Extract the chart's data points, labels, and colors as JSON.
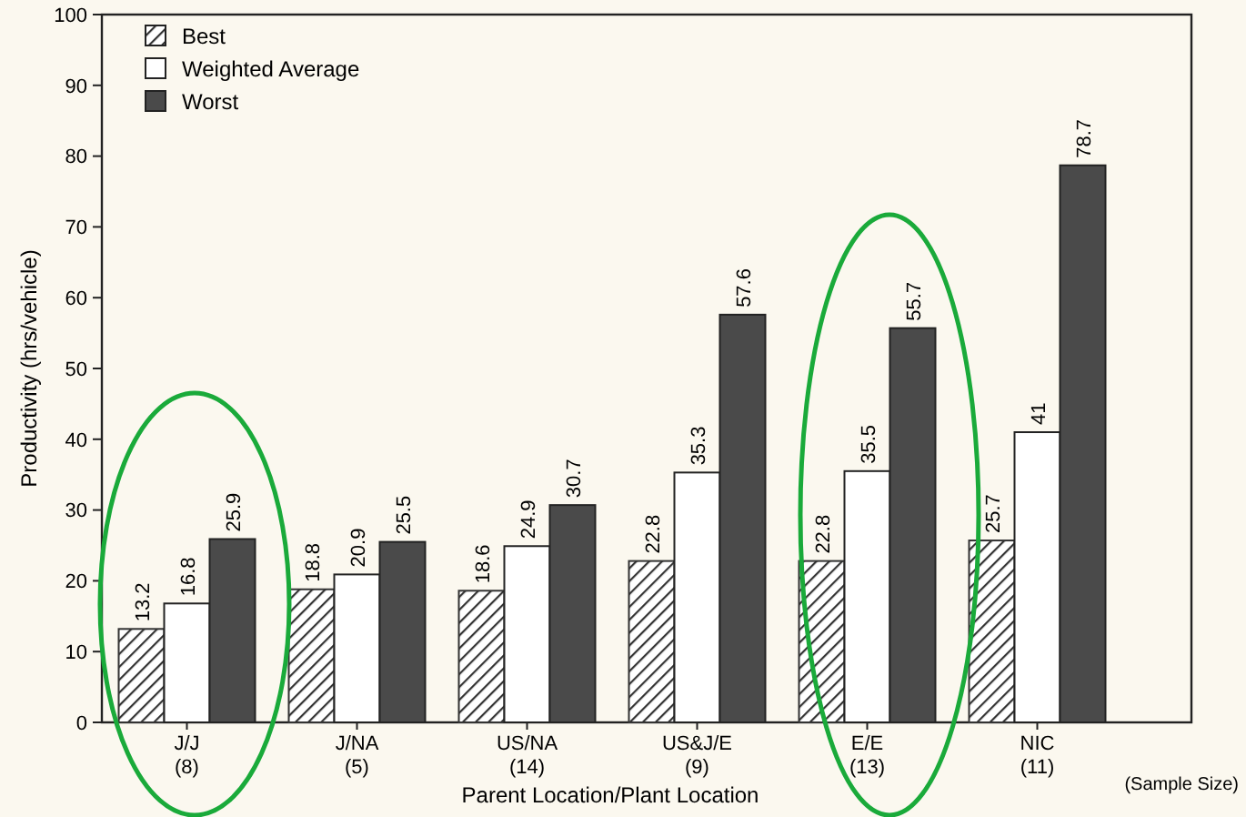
{
  "chart_data": {
    "type": "bar",
    "xlabel": "Parent Location/Plant Location",
    "ylabel": "Productivity (hrs/vehicle)",
    "categories": [
      "J/J\n(8)",
      "J/NA\n(5)",
      "US/NA\n(14)",
      "US&J/E\n(9)",
      "E/E\n(13)",
      "NIC\n(11)"
    ],
    "series": [
      {
        "name": "Best",
        "color": "#333333",
        "values": [
          13.2,
          18.8,
          18.6,
          22.8,
          22.8,
          25.7
        ]
      },
      {
        "name": "Weighted Average",
        "color": "#ffffff",
        "values": [
          16.8,
          20.9,
          24.9,
          35.3,
          35.5,
          41
        ]
      },
      {
        "name": "Worst",
        "color": "#4a4a4a",
        "values": [
          25.9,
          25.5,
          30.7,
          57.6,
          55.7,
          78.7
        ]
      }
    ],
    "ylim": [
      0,
      100
    ],
    "yticks": [
      0,
      10,
      20,
      30,
      40,
      50,
      60,
      70,
      80,
      90,
      100
    ],
    "legend": "top left",
    "data_labels": true,
    "grid": false,
    "annotations": [
      "(Sample Size)"
    ]
  }
}
